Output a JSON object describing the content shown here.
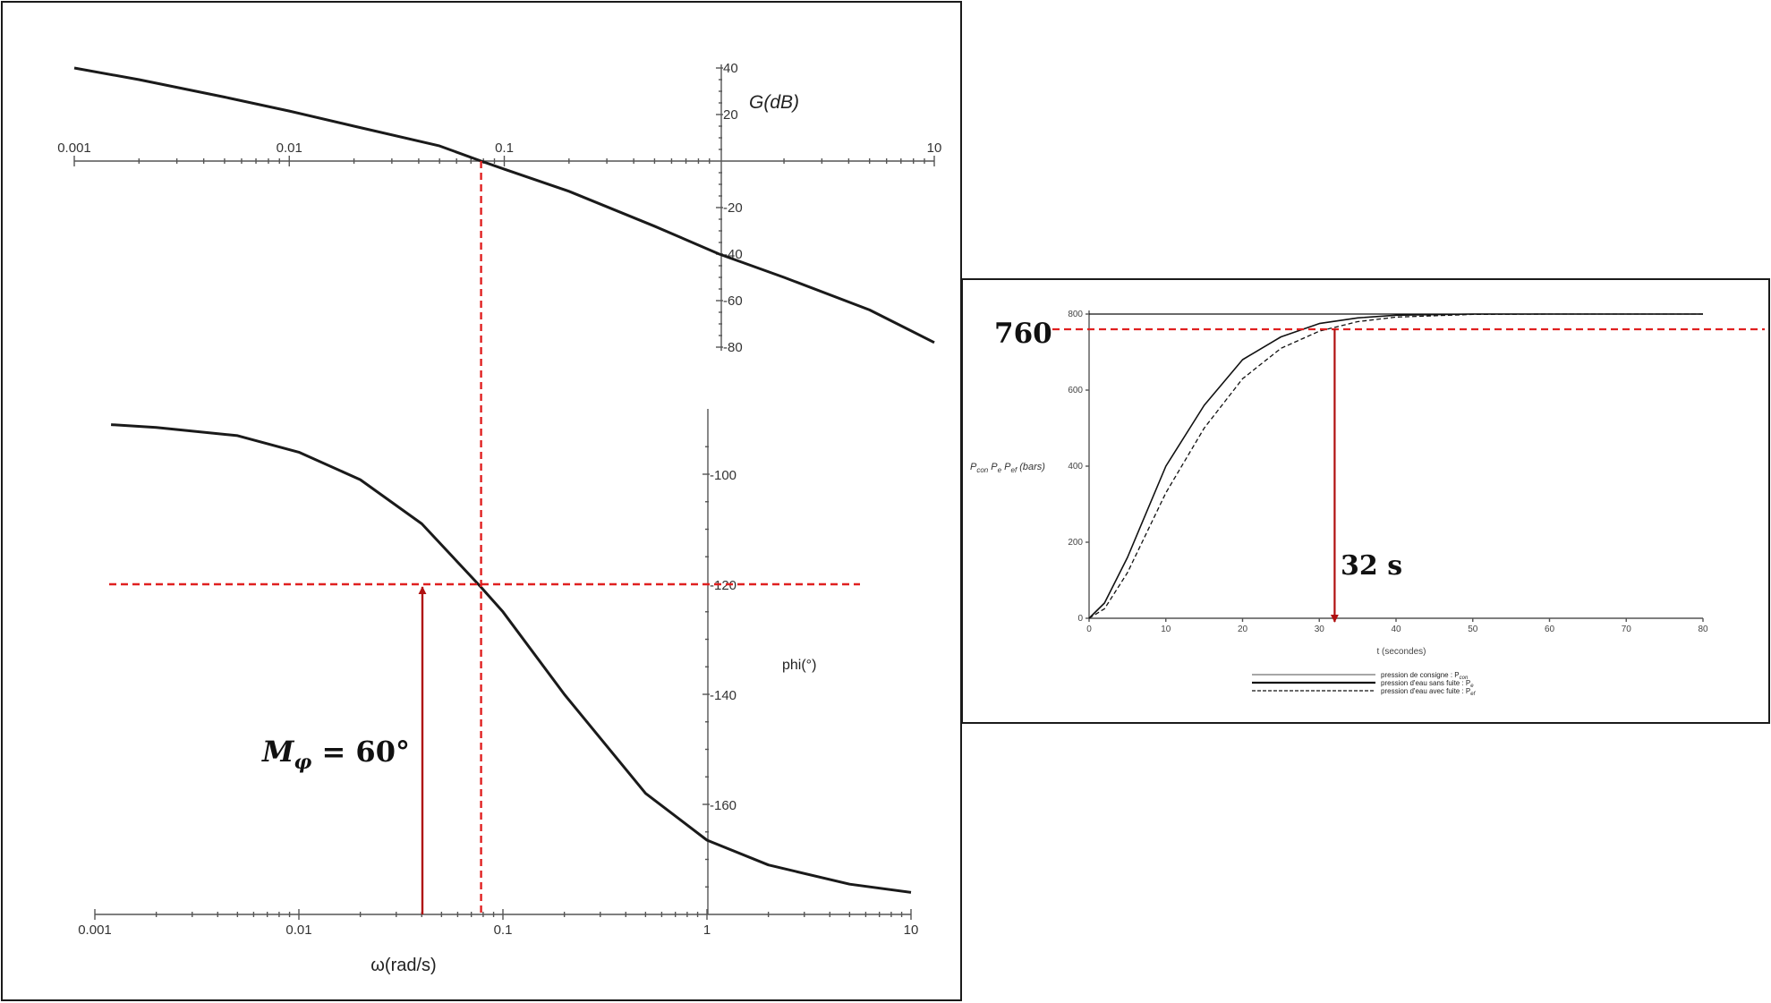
{
  "chart_data": [
    {
      "type": "line",
      "subplot": "gain",
      "x_scale": "log",
      "xlim": [
        0.001,
        10
      ],
      "ylim": [
        -80,
        40
      ],
      "x_tick_labels": [
        "0.001",
        "0.01",
        "0.1",
        "10"
      ],
      "y_tick_labels": [
        "40",
        "20",
        "-20",
        "-40",
        "-60",
        "-80"
      ],
      "ylabel": "G(dB)",
      "x": [
        0.001,
        0.002,
        0.005,
        0.01,
        0.02,
        0.05,
        0.078,
        0.1,
        0.2,
        0.5,
        1,
        2,
        5,
        10
      ],
      "y": [
        40,
        35,
        27.5,
        21.5,
        15,
        6.5,
        0,
        -3.5,
        -13,
        -28,
        -40,
        -50,
        -64,
        -78
      ],
      "annotations": {
        "crossover_omega": 0.078
      }
    },
    {
      "type": "line",
      "subplot": "phase",
      "x_scale": "log",
      "xlim": [
        0.001,
        10
      ],
      "ylim": [
        -180,
        -90
      ],
      "x_tick_labels": [
        "0.001",
        "0.01",
        "0.1",
        "1",
        "10"
      ],
      "y_tick_labels": [
        "-100",
        "-120",
        "-140",
        "-160"
      ],
      "ylabel": "phi(°)",
      "xlabel": "ω(rad/s)",
      "x": [
        0.0012,
        0.002,
        0.005,
        0.01,
        0.02,
        0.04,
        0.078,
        0.1,
        0.2,
        0.5,
        1,
        2,
        5,
        10
      ],
      "y": [
        -91,
        -91.5,
        -93,
        -96,
        -101,
        -109,
        -120.5,
        -125,
        -140,
        -158,
        -166.5,
        -171,
        -174.5,
        -176
      ],
      "annotations": {
        "phase_at_crossover": -120,
        "phase_margin_label": "M_φ = 60°"
      }
    },
    {
      "type": "line",
      "subplot": "step_response",
      "xlim": [
        0,
        80
      ],
      "ylim": [
        0,
        800
      ],
      "x_tick_labels": [
        "0",
        "10",
        "20",
        "30",
        "40",
        "50",
        "60",
        "70",
        "80"
      ],
      "y_tick_labels": [
        "0",
        "200",
        "400",
        "600",
        "800"
      ],
      "xlabel": "t (secondes)",
      "ylabel": "Pcon Pe Pef (bars)",
      "series": [
        {
          "name": "pression de consigne : Pcon",
          "style": "thin",
          "x": [
            0,
            80
          ],
          "y": [
            800,
            800
          ]
        },
        {
          "name": "pression d'eau sans fuite : Pe",
          "style": "solid",
          "x": [
            0,
            2,
            5,
            10,
            15,
            20,
            25,
            30,
            35,
            40,
            50,
            60,
            80
          ],
          "y": [
            0,
            40,
            160,
            400,
            560,
            680,
            740,
            775,
            790,
            797,
            800,
            800,
            800
          ]
        },
        {
          "name": "pression d'eau avec fuite : Pef",
          "style": "dashed",
          "x": [
            0,
            2,
            5,
            10,
            15,
            20,
            25,
            30,
            35,
            40,
            50,
            60,
            80
          ],
          "y": [
            0,
            25,
            120,
            330,
            500,
            630,
            710,
            755,
            780,
            792,
            799,
            800,
            800
          ]
        }
      ],
      "annotations": {
        "level_label": "760",
        "time_label": "32 s",
        "level": 760,
        "time": 32
      }
    }
  ],
  "bode": {
    "gain_ylabel": "G(dB)",
    "phase_ylabel": "phi(°)",
    "xlabel": "ω(rad/s)",
    "margin_label_main": "M",
    "margin_label_sub": "φ",
    "margin_label_rest": " = 60°"
  },
  "step": {
    "level_label": "760",
    "time_label": "32 s",
    "ylabel_parts": [
      "P",
      "con",
      " P",
      "e",
      " P",
      "ef",
      " (bars)"
    ],
    "xlabel": "t (secondes)",
    "legend": [
      {
        "label": "pression de consigne : P",
        "sub": "con"
      },
      {
        "label": "pression d'eau sans fuite : P",
        "sub": "e"
      },
      {
        "label": "pression d'eau avec fuite : P",
        "sub": "ef"
      }
    ]
  },
  "colors": {
    "curve": "#1a1a1a",
    "annotation_red": "#e02020",
    "arrow": "#b01010"
  }
}
